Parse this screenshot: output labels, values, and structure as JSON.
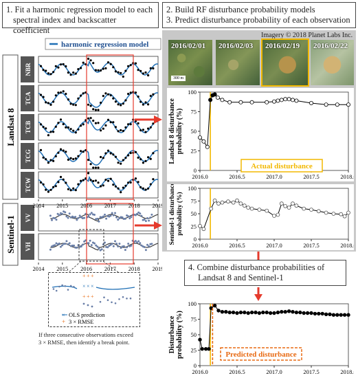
{
  "step1": {
    "line1": "1. Fit a harmonic regression model to each",
    "line2": "spectral index and backscatter coefficient"
  },
  "step2": {
    "line1": "2. Build RF disturbance probability models",
    "line2": "3. Predict disturbance probability of each observation"
  },
  "step4": {
    "line1": "4. Combine disturbance probabilities of",
    "line2": "Landsat 8 and Sentinel-1"
  },
  "legend_harmonic": "harmonic regression  model",
  "landsat_label": "Landsat 8",
  "sentinel_label": "Sentinel-1",
  "landsat_bands": [
    "NBR",
    "TCA",
    "TCB",
    "TCG",
    "TCW"
  ],
  "sentinel_bands": [
    "VV",
    "VH"
  ],
  "left_years": [
    "2014",
    "2015",
    "2016",
    "2017",
    "2018",
    "2019"
  ],
  "imagery_credit": "Imagery © 2018 Planet Labs Inc.",
  "image_dates": [
    "2016/02/01",
    "2016/02/03",
    "2016/02/19",
    "2016/02/22"
  ],
  "scalebar": "300 m",
  "inset": {
    "ols": "OLS prediction",
    "rmse": "3 × RMSE",
    "note1": "If three consecutive observations exceed",
    "note2": "3 × RMSE, then identify a break point."
  },
  "prob_ticks": [
    "0",
    "25",
    "50",
    "75",
    "100"
  ],
  "year_ticks": [
    "2016.0",
    "2016.5",
    "2017.0",
    "2017.5",
    "2018.0"
  ],
  "ylabel_landsat": [
    "Landsat 8 disturbance",
    "probability (%)"
  ],
  "ylabel_sentinel": [
    "Sentinel-1 disturbance",
    "probability (%)"
  ],
  "ylabel_combined": [
    "Disturbance",
    "probability (%)"
  ],
  "actual_disturbance": "Actual disturbance",
  "predicted_disturbance": "Predicted disturbance",
  "colors": {
    "harmonic": "#1f6fb5",
    "highlight": "#e53a2c",
    "actual": "#f2b800",
    "predicted": "#e86a12",
    "panel": "#c8c8c8"
  },
  "chart_data": [
    {
      "type": "line",
      "ylabel": "Landsat 8 disturbance probability (%)",
      "ylim": [
        0,
        100
      ],
      "xlim": [
        2016.0,
        2018.0
      ],
      "x": [
        2016.0,
        2016.05,
        2016.1,
        2016.14,
        2016.17,
        2016.2,
        2016.24,
        2016.3,
        2016.4,
        2016.55,
        2016.7,
        2016.9,
        2017.0,
        2017.05,
        2017.1,
        2017.15,
        2017.2,
        2017.25,
        2017.3,
        2017.5,
        2017.7,
        2017.85,
        2018.0
      ],
      "y": [
        42,
        37,
        30,
        90,
        96,
        97,
        93,
        90,
        87,
        87,
        87,
        87,
        88,
        89,
        90,
        91,
        91,
        90,
        89,
        86,
        84,
        84,
        84
      ],
      "filled": [
        false,
        false,
        false,
        true,
        true,
        true,
        false,
        false,
        false,
        false,
        false,
        false,
        false,
        false,
        false,
        false,
        false,
        false,
        false,
        false,
        false,
        false,
        false
      ],
      "annotation": "Actual disturbance",
      "marker_x": 2016.14
    },
    {
      "type": "line",
      "ylabel": "Sentinel-1 disturbance probability (%)",
      "ylim": [
        0,
        100
      ],
      "xlim": [
        2016.0,
        2018.0
      ],
      "x": [
        2016.0,
        2016.05,
        2016.15,
        2016.2,
        2016.25,
        2016.3,
        2016.38,
        2016.45,
        2016.5,
        2016.55,
        2016.6,
        2016.65,
        2016.7,
        2016.8,
        2016.9,
        2017.0,
        2017.05,
        2017.1,
        2017.15,
        2017.2,
        2017.25,
        2017.3,
        2017.4,
        2017.5,
        2017.6,
        2017.7,
        2017.8,
        2017.9,
        2017.95,
        2018.0
      ],
      "y": [
        26,
        20,
        60,
        76,
        70,
        72,
        74,
        72,
        76,
        70,
        66,
        62,
        60,
        58,
        56,
        46,
        48,
        70,
        65,
        62,
        70,
        66,
        60,
        58,
        55,
        52,
        50,
        49,
        45,
        52
      ],
      "marker_x": 2016.14
    },
    {
      "type": "line",
      "ylabel": "Disturbance probability (%)",
      "ylim": [
        0,
        100
      ],
      "xlim": [
        2016.0,
        2018.0
      ],
      "x": [
        2016.0,
        2016.03,
        2016.08,
        2016.12,
        2016.15,
        2016.2,
        2016.25,
        2016.3,
        2016.35,
        2016.4,
        2016.45,
        2016.5,
        2016.55,
        2016.6,
        2016.65,
        2016.7,
        2016.75,
        2016.8,
        2016.85,
        2016.9,
        2016.95,
        2017.0,
        2017.05,
        2017.1,
        2017.15,
        2017.2,
        2017.25,
        2017.3,
        2017.35,
        2017.4,
        2017.45,
        2017.5,
        2017.55,
        2017.6,
        2017.65,
        2017.7,
        2017.75,
        2017.8,
        2017.85,
        2017.9,
        2017.95,
        2018.0
      ],
      "y": [
        42,
        27,
        27,
        27,
        93,
        97,
        89,
        87,
        87,
        86,
        86,
        85,
        86,
        86,
        85,
        86,
        86,
        85,
        86,
        86,
        85,
        85,
        86,
        87,
        87,
        88,
        87,
        86,
        86,
        85,
        85,
        85,
        84,
        84,
        84,
        83,
        83,
        82,
        82,
        82,
        82,
        82
      ],
      "annotation": "Predicted disturbance",
      "marker_x": 2016.14
    }
  ]
}
